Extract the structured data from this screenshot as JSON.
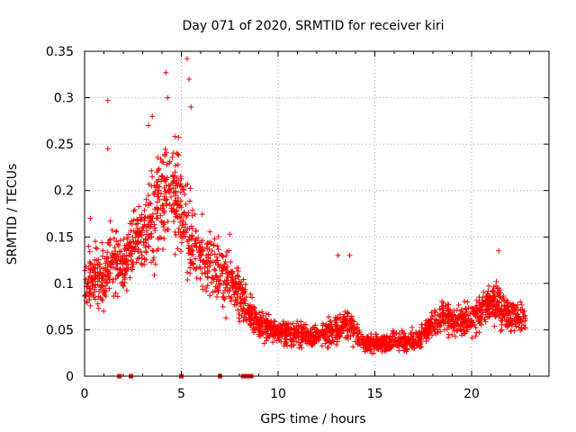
{
  "chart_data": {
    "type": "scatter",
    "title": "Day 071 of 2020, SRMTID for receiver kiri",
    "xlabel": "GPS time / hours",
    "ylabel": "SRMTID / TECUs",
    "xlim": [
      0,
      24
    ],
    "ylim": [
      0,
      0.35
    ],
    "x_ticks": [
      0,
      5,
      10,
      15,
      20
    ],
    "x_tick_labels": [
      "0",
      "5",
      "10",
      "15",
      "20"
    ],
    "y_ticks": [
      0,
      0.05,
      0.1,
      0.15,
      0.2,
      0.25,
      0.3,
      0.35
    ],
    "y_tick_labels": [
      "0",
      "0.05",
      "0.1",
      "0.15",
      "0.2",
      "0.25",
      "0.3",
      "0.35"
    ],
    "grid": true,
    "marker": "plus",
    "series": [
      {
        "name": "SRMTID",
        "color": "#ff0000",
        "envelope": [
          {
            "x": 0.0,
            "y": 0.1
          },
          {
            "x": 0.5,
            "y": 0.11
          },
          {
            "x": 1.0,
            "y": 0.1
          },
          {
            "x": 1.5,
            "y": 0.13
          },
          {
            "x": 2.0,
            "y": 0.12
          },
          {
            "x": 2.5,
            "y": 0.14
          },
          {
            "x": 3.0,
            "y": 0.15
          },
          {
            "x": 3.5,
            "y": 0.17
          },
          {
            "x": 4.0,
            "y": 0.19
          },
          {
            "x": 4.5,
            "y": 0.21
          },
          {
            "x": 5.0,
            "y": 0.18
          },
          {
            "x": 5.5,
            "y": 0.15
          },
          {
            "x": 6.0,
            "y": 0.13
          },
          {
            "x": 6.5,
            "y": 0.12
          },
          {
            "x": 7.0,
            "y": 0.11
          },
          {
            "x": 7.5,
            "y": 0.1
          },
          {
            "x": 8.0,
            "y": 0.09
          },
          {
            "x": 8.5,
            "y": 0.07
          },
          {
            "x": 9.0,
            "y": 0.055
          },
          {
            "x": 10.0,
            "y": 0.048
          },
          {
            "x": 11.0,
            "y": 0.045
          },
          {
            "x": 12.0,
            "y": 0.043
          },
          {
            "x": 13.0,
            "y": 0.05
          },
          {
            "x": 13.5,
            "y": 0.06
          },
          {
            "x": 14.0,
            "y": 0.045
          },
          {
            "x": 14.5,
            "y": 0.035
          },
          {
            "x": 15.0,
            "y": 0.035
          },
          {
            "x": 16.0,
            "y": 0.038
          },
          {
            "x": 17.0,
            "y": 0.037
          },
          {
            "x": 17.5,
            "y": 0.045
          },
          {
            "x": 18.0,
            "y": 0.055
          },
          {
            "x": 18.5,
            "y": 0.065
          },
          {
            "x": 19.0,
            "y": 0.06
          },
          {
            "x": 20.0,
            "y": 0.06
          },
          {
            "x": 20.5,
            "y": 0.07
          },
          {
            "x": 21.0,
            "y": 0.08
          },
          {
            "x": 21.5,
            "y": 0.075
          },
          {
            "x": 22.0,
            "y": 0.065
          },
          {
            "x": 22.7,
            "y": 0.06
          }
        ],
        "x_range": [
          0.0,
          22.8
        ],
        "n_points": 2400,
        "spread_fraction": 0.45,
        "outliers": [
          {
            "x": 1.2,
            "y": 0.297
          },
          {
            "x": 4.2,
            "y": 0.327
          },
          {
            "x": 5.3,
            "y": 0.342
          },
          {
            "x": 5.4,
            "y": 0.32
          },
          {
            "x": 4.3,
            "y": 0.3
          },
          {
            "x": 3.5,
            "y": 0.28
          },
          {
            "x": 3.3,
            "y": 0.27
          },
          {
            "x": 5.5,
            "y": 0.29
          },
          {
            "x": 13.1,
            "y": 0.13
          },
          {
            "x": 13.7,
            "y": 0.13
          },
          {
            "x": 21.4,
            "y": 0.135
          },
          {
            "x": 1.2,
            "y": 0.245
          },
          {
            "x": 0.3,
            "y": 0.17
          },
          {
            "x": 7.5,
            "y": 0.153
          }
        ]
      },
      {
        "name": "zero-markers",
        "color": "#ff0000",
        "points": [
          {
            "x": 1.8,
            "y": 0
          },
          {
            "x": 2.4,
            "y": 0
          },
          {
            "x": 5.0,
            "y": 0
          },
          {
            "x": 7.0,
            "y": 0
          },
          {
            "x": 8.2,
            "y": 0
          },
          {
            "x": 8.4,
            "y": 0
          },
          {
            "x": 8.6,
            "y": 0
          }
        ]
      }
    ]
  }
}
